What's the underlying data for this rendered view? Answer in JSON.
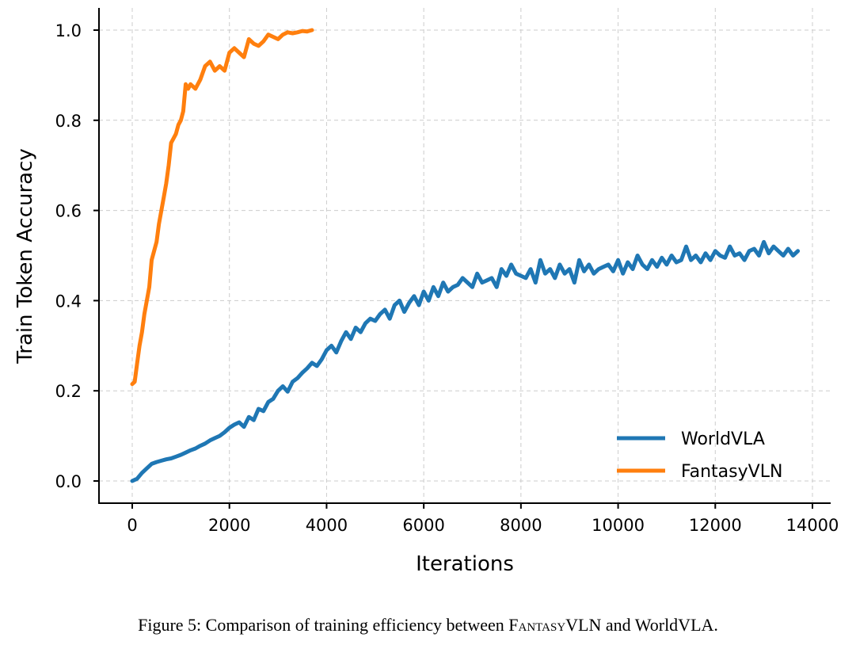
{
  "chart_data": {
    "type": "line",
    "xlabel": "Iterations",
    "ylabel": "Train Token Accuracy",
    "xlim": [
      -650,
      14350
    ],
    "ylim": [
      -0.05,
      1.05
    ],
    "xticks": [
      0,
      2000,
      4000,
      6000,
      8000,
      10000,
      12000,
      14000
    ],
    "xtick_labels": [
      "0",
      "2000",
      "4000",
      "6000",
      "8000",
      "10000",
      "12000",
      "14000"
    ],
    "yticks": [
      0.0,
      0.2,
      0.4,
      0.6,
      0.8,
      1.0
    ],
    "ytick_labels": [
      "0.0",
      "0.2",
      "0.4",
      "0.6",
      "0.8",
      "1.0"
    ],
    "grid": true,
    "legend_position": "lower-right",
    "series": [
      {
        "name": "WorldVLA",
        "color": "#1f77b4",
        "x": [
          0,
          100,
          200,
          300,
          400,
          500,
          600,
          700,
          800,
          900,
          1000,
          1100,
          1200,
          1300,
          1400,
          1500,
          1600,
          1700,
          1800,
          1900,
          2000,
          2100,
          2200,
          2300,
          2400,
          2500,
          2600,
          2700,
          2800,
          2900,
          3000,
          3100,
          3200,
          3300,
          3400,
          3500,
          3600,
          3700,
          3800,
          3900,
          4000,
          4100,
          4200,
          4300,
          4400,
          4500,
          4600,
          4700,
          4800,
          4900,
          5000,
          5100,
          5200,
          5300,
          5400,
          5500,
          5600,
          5700,
          5800,
          5900,
          6000,
          6100,
          6200,
          6300,
          6400,
          6500,
          6600,
          6700,
          6800,
          6900,
          7000,
          7100,
          7200,
          7300,
          7400,
          7500,
          7600,
          7700,
          7800,
          7900,
          8000,
          8100,
          8200,
          8300,
          8400,
          8500,
          8600,
          8700,
          8800,
          8900,
          9000,
          9100,
          9200,
          9300,
          9400,
          9500,
          9600,
          9700,
          9800,
          9900,
          10000,
          10100,
          10200,
          10300,
          10400,
          10500,
          10600,
          10700,
          10800,
          10900,
          11000,
          11100,
          11200,
          11300,
          11400,
          11500,
          11600,
          11700,
          11800,
          11900,
          12000,
          12100,
          12200,
          12300,
          12400,
          12500,
          12600,
          12700,
          12800,
          12900,
          13000,
          13100,
          13200,
          13300,
          13400,
          13500,
          13600,
          13700
        ],
        "y": [
          0.0,
          0.005,
          0.018,
          0.028,
          0.038,
          0.042,
          0.045,
          0.048,
          0.05,
          0.054,
          0.058,
          0.063,
          0.068,
          0.072,
          0.078,
          0.083,
          0.09,
          0.095,
          0.1,
          0.108,
          0.118,
          0.125,
          0.13,
          0.12,
          0.142,
          0.135,
          0.16,
          0.155,
          0.175,
          0.182,
          0.2,
          0.21,
          0.198,
          0.22,
          0.228,
          0.24,
          0.25,
          0.262,
          0.255,
          0.27,
          0.29,
          0.3,
          0.285,
          0.31,
          0.33,
          0.315,
          0.34,
          0.33,
          0.35,
          0.36,
          0.355,
          0.37,
          0.38,
          0.36,
          0.39,
          0.4,
          0.375,
          0.395,
          0.41,
          0.39,
          0.42,
          0.4,
          0.43,
          0.41,
          0.44,
          0.42,
          0.43,
          0.435,
          0.45,
          0.44,
          0.43,
          0.46,
          0.44,
          0.445,
          0.45,
          0.43,
          0.47,
          0.455,
          0.48,
          0.46,
          0.455,
          0.45,
          0.47,
          0.44,
          0.49,
          0.46,
          0.47,
          0.45,
          0.48,
          0.46,
          0.47,
          0.44,
          0.49,
          0.465,
          0.48,
          0.46,
          0.47,
          0.475,
          0.48,
          0.465,
          0.49,
          0.46,
          0.485,
          0.47,
          0.5,
          0.48,
          0.47,
          0.49,
          0.475,
          0.495,
          0.48,
          0.5,
          0.485,
          0.49,
          0.52,
          0.49,
          0.5,
          0.485,
          0.505,
          0.49,
          0.51,
          0.5,
          0.495,
          0.52,
          0.5,
          0.505,
          0.49,
          0.51,
          0.515,
          0.5,
          0.53,
          0.505,
          0.52,
          0.51,
          0.5,
          0.515,
          0.5,
          0.51
        ],
        "y_noise_peaks": [
          0.51,
          0.52,
          0.53,
          0.535,
          0.54
        ]
      },
      {
        "name": "FantasyVLN",
        "color": "#ff7f0e",
        "x": [
          0,
          50,
          100,
          150,
          200,
          250,
          300,
          350,
          400,
          450,
          500,
          550,
          600,
          650,
          700,
          750,
          800,
          850,
          900,
          950,
          1000,
          1050,
          1100,
          1150,
          1200,
          1300,
          1400,
          1500,
          1600,
          1700,
          1800,
          1900,
          2000,
          2100,
          2200,
          2300,
          2400,
          2500,
          2600,
          2700,
          2800,
          2900,
          3000,
          3100,
          3200,
          3300,
          3400,
          3500,
          3600,
          3700
        ],
        "y": [
          0.215,
          0.22,
          0.26,
          0.3,
          0.33,
          0.37,
          0.4,
          0.43,
          0.49,
          0.51,
          0.53,
          0.57,
          0.6,
          0.63,
          0.66,
          0.7,
          0.75,
          0.76,
          0.77,
          0.79,
          0.8,
          0.82,
          0.88,
          0.87,
          0.88,
          0.87,
          0.89,
          0.92,
          0.93,
          0.91,
          0.92,
          0.91,
          0.95,
          0.96,
          0.95,
          0.94,
          0.98,
          0.97,
          0.965,
          0.975,
          0.99,
          0.985,
          0.98,
          0.99,
          0.995,
          0.993,
          0.995,
          0.998,
          0.997,
          1.0
        ]
      }
    ]
  },
  "caption": {
    "prefix": "Figure 5: Comparison of training efficiency between ",
    "name_smallcaps": "Fantasy",
    "name_rest": "VLN and WorldVLA."
  }
}
